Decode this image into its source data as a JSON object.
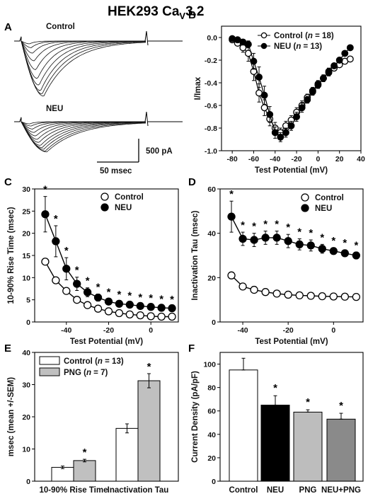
{
  "figure_title": {
    "main": "HEK293 Ca",
    "sub": "V",
    "tail": "3.2"
  },
  "chart_data": [
    {
      "panel": "A",
      "type": "line",
      "trace_labels": [
        "Control",
        "NEU"
      ],
      "scale_bar": {
        "current": "500 pA",
        "time": "50 msec"
      },
      "traces": {
        "Control": [
          -0.05,
          -0.12,
          -0.22,
          -0.36,
          -0.52,
          -0.68,
          -0.8,
          -0.9,
          -0.96,
          -1.0
        ],
        "NEU": [
          -0.05,
          -0.1,
          -0.17,
          -0.25,
          -0.33,
          -0.41,
          -0.48,
          -0.55,
          -0.6,
          -0.64,
          -0.68,
          -0.7
        ]
      }
    },
    {
      "panel": "B",
      "type": "line",
      "xlabel": "Test Potential (mV)",
      "ylabel": "I/Imax",
      "xlim": [
        -90,
        40
      ],
      "ylim": [
        -1.0,
        0.1
      ],
      "xticks": [
        -80,
        -60,
        -40,
        -20,
        0,
        20,
        40
      ],
      "yticks": [
        0.0,
        -0.2,
        -0.4,
        -0.6,
        -0.8,
        -1.0
      ],
      "legend": "top-right",
      "x": [
        -80,
        -75,
        -70,
        -65,
        -60,
        -55,
        -50,
        -45,
        -40,
        -35,
        -30,
        -25,
        -20,
        -15,
        -10,
        -5,
        0,
        5,
        10,
        15,
        20,
        25,
        30
      ],
      "series": [
        {
          "name": "Control",
          "n": "18",
          "marker": "open-circle",
          "values": [
            -0.02,
            -0.05,
            -0.09,
            -0.14,
            -0.3,
            -0.49,
            -0.62,
            -0.72,
            -0.8,
            -0.84,
            -0.78,
            -0.73,
            -0.66,
            -0.6,
            -0.53,
            -0.47,
            -0.41,
            -0.36,
            -0.31,
            -0.27,
            -0.24,
            -0.21,
            -0.19
          ],
          "err": [
            0.01,
            0.02,
            0.04,
            0.07,
            0.08,
            0.08,
            0.07,
            0.06,
            0.05,
            0.04,
            0.04,
            0.04,
            0.04,
            0.04,
            0.03,
            0.03,
            0.03,
            0.03,
            0.03,
            0.02,
            0.02,
            0.02,
            0.02
          ]
        },
        {
          "name": "NEU",
          "n": "13",
          "marker": "filled-circle",
          "values": [
            -0.01,
            -0.02,
            -0.04,
            -0.06,
            -0.21,
            -0.35,
            -0.51,
            -0.68,
            -0.84,
            -0.88,
            -0.84,
            -0.78,
            -0.7,
            -0.62,
            -0.55,
            -0.48,
            -0.42,
            -0.36,
            -0.3,
            -0.25,
            -0.2,
            -0.14,
            -0.09
          ],
          "err": [
            0.01,
            0.01,
            0.02,
            0.03,
            0.07,
            0.09,
            0.08,
            0.07,
            0.05,
            0.04,
            0.04,
            0.04,
            0.04,
            0.04,
            0.03,
            0.03,
            0.03,
            0.03,
            0.03,
            0.02,
            0.02,
            0.02,
            0.02
          ]
        }
      ]
    },
    {
      "panel": "C",
      "type": "line",
      "xlabel": "Test Potential (mV)",
      "ylabel": "10-90% Rise Time (msec)",
      "xlim": [
        -55,
        13
      ],
      "ylim": [
        0,
        30
      ],
      "xticks": [
        -40,
        -20,
        0
      ],
      "yticks": [
        0,
        5,
        10,
        15,
        20,
        25,
        30
      ],
      "legend": "top-right",
      "x": [
        -50,
        -45,
        -40,
        -35,
        -30,
        -25,
        -20,
        -15,
        -10,
        -5,
        0,
        5,
        10
      ],
      "series": [
        {
          "name": "Control",
          "marker": "open-circle",
          "values": [
            13.6,
            9.4,
            7.0,
            5.0,
            3.8,
            3.0,
            2.4,
            2.0,
            1.7,
            1.5,
            1.3,
            1.2,
            1.2
          ],
          "err": [
            0.5,
            0.5,
            0.5,
            0.4,
            0.3,
            0.3,
            0.3,
            0.2,
            0.2,
            0.2,
            0.2,
            0.2,
            0.2
          ]
        },
        {
          "name": "NEU",
          "marker": "filled-circle",
          "values": [
            24.3,
            18.2,
            12.0,
            8.6,
            6.7,
            5.5,
            4.6,
            4.1,
            3.9,
            3.6,
            3.4,
            3.2,
            3.1
          ],
          "err": [
            4.0,
            3.5,
            2.5,
            1.5,
            1.0,
            0.8,
            0.6,
            0.5,
            0.5,
            0.4,
            0.4,
            0.4,
            0.4
          ]
        }
      ],
      "significance_x": [
        -50,
        -45,
        -40,
        -35,
        -30,
        -25,
        -20,
        -15,
        -10,
        -5,
        0,
        5,
        10
      ]
    },
    {
      "panel": "D",
      "type": "line",
      "xlabel": "Test Potential (mV)",
      "ylabel": "Inactivation  Tau (msec)",
      "xlim": [
        -50,
        13
      ],
      "ylim": [
        0,
        60
      ],
      "xticks": [
        -40,
        -20,
        0
      ],
      "yticks": [
        0,
        20,
        40,
        60
      ],
      "legend": "top-right",
      "x": [
        -45,
        -40,
        -35,
        -30,
        -25,
        -20,
        -15,
        -10,
        -5,
        0,
        5,
        10
      ],
      "series": [
        {
          "name": "Control",
          "marker": "open-circle",
          "values": [
            21.0,
            16.0,
            14.5,
            13.5,
            12.8,
            12.3,
            12.0,
            11.8,
            11.6,
            11.5,
            11.4,
            11.3
          ],
          "err": [
            1.5,
            1.0,
            0.8,
            0.7,
            0.7,
            0.6,
            0.6,
            0.6,
            0.6,
            0.6,
            0.6,
            0.6
          ]
        },
        {
          "name": "NEU",
          "marker": "filled-circle",
          "values": [
            47.5,
            37.5,
            37.0,
            38.0,
            38.0,
            36.5,
            35.0,
            34.5,
            33.0,
            32.0,
            31.0,
            30.0
          ],
          "err": [
            7.0,
            3.0,
            3.0,
            3.0,
            3.0,
            3.0,
            2.5,
            2.5,
            2.0,
            1.5,
            1.5,
            1.5
          ]
        }
      ],
      "significance_x": [
        -45,
        -40,
        -35,
        -30,
        -25,
        -20,
        -15,
        -10,
        -5,
        0,
        5,
        10
      ]
    },
    {
      "panel": "E",
      "type": "bar",
      "ylabel": "msec (mean +/-SEM)",
      "ylim": [
        0,
        40
      ],
      "yticks": [
        0,
        10,
        20,
        30,
        40
      ],
      "legend": "top-left",
      "categories": [
        "10-90% Rise Time",
        "Inactivation Tau"
      ],
      "series": [
        {
          "name": "Control",
          "n": "13",
          "color": "#ffffff",
          "values": [
            4.3,
            16.4
          ],
          "err": [
            0.4,
            1.4
          ]
        },
        {
          "name": "PNG",
          "n": "7",
          "color": "#c0c0c0",
          "values": [
            6.4,
            31.2
          ],
          "err": [
            0.4,
            2.2
          ]
        }
      ],
      "significance": [
        "*",
        "*"
      ]
    },
    {
      "panel": "F",
      "type": "bar",
      "ylabel": "Current Density (pA/pF)",
      "ylim": [
        0,
        110
      ],
      "yticks": [
        0,
        20,
        40,
        60,
        80,
        100
      ],
      "categories": [
        "Control",
        "NEU",
        "PNG",
        "NEU+PNG"
      ],
      "colors": [
        "#ffffff",
        "#000000",
        "#bdbdbd",
        "#8a8a8a"
      ],
      "values": [
        95,
        65,
        59,
        53
      ],
      "err": [
        10,
        8,
        2,
        5
      ],
      "significance": [
        "",
        "*",
        "*",
        "*"
      ]
    }
  ]
}
